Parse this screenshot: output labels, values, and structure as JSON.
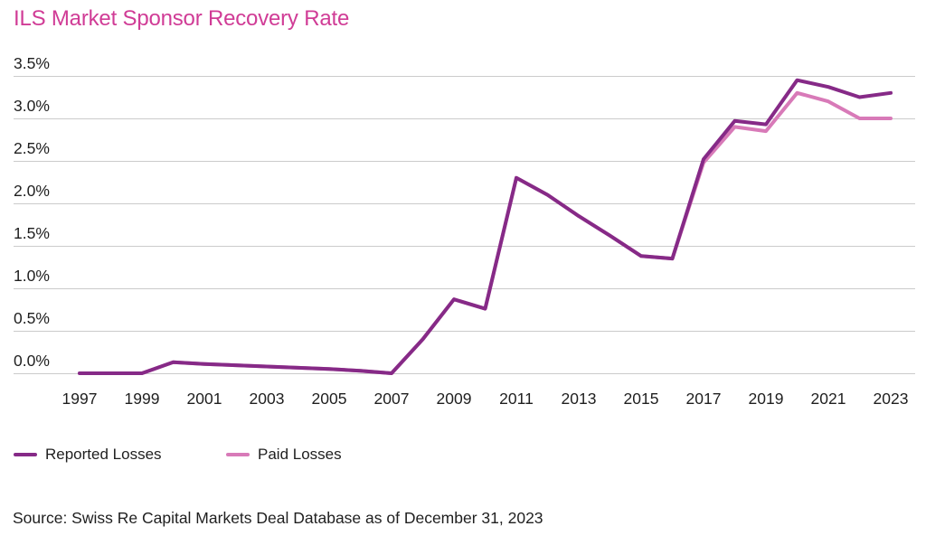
{
  "title": "ILS Market Sponsor Recovery Rate",
  "source_note": "Source: Swiss Re Capital Markets Deal Database as of December 31, 2023",
  "colors": {
    "title_accent": "#d03c96",
    "grid": "#cbcbcb",
    "text": "#1f1f1f",
    "reported_losses": "#862a87",
    "paid_losses": "#d87ab8"
  },
  "chart_data": {
    "type": "line",
    "title": "ILS Market Sponsor Recovery Rate",
    "xlabel": "",
    "ylabel": "",
    "x": [
      1997,
      1998,
      1999,
      2000,
      2001,
      2002,
      2003,
      2004,
      2005,
      2006,
      2007,
      2008,
      2009,
      2010,
      2011,
      2012,
      2013,
      2014,
      2015,
      2016,
      2017,
      2018,
      2019,
      2020,
      2021,
      2022,
      2023
    ],
    "x_tick_labels": [
      "1997",
      "1999",
      "2001",
      "2003",
      "2005",
      "2007",
      "2009",
      "2011",
      "2013",
      "2015",
      "2017",
      "2019",
      "2021",
      "2023"
    ],
    "y_ticks": [
      0.0,
      0.5,
      1.0,
      1.5,
      2.0,
      2.5,
      3.0,
      3.5
    ],
    "y_tick_suffix": "%",
    "ylim": [
      0,
      3.5
    ],
    "grid": true,
    "legend_position": "bottom-left",
    "series": [
      {
        "name": "Reported Losses",
        "color": "#862a87",
        "values": [
          0.0,
          0.0,
          0.0,
          0.13,
          0.11,
          0.095,
          0.08,
          0.065,
          0.05,
          0.03,
          0.0,
          0.4,
          0.87,
          0.76,
          2.3,
          2.1,
          1.85,
          1.62,
          1.38,
          1.35,
          2.52,
          2.97,
          2.93,
          3.45,
          3.37,
          3.25,
          3.3
        ]
      },
      {
        "name": "Paid Losses",
        "color": "#d87ab8",
        "values": [
          0.0,
          0.0,
          0.0,
          0.13,
          0.11,
          0.095,
          0.08,
          0.065,
          0.05,
          0.03,
          0.0,
          0.4,
          0.87,
          0.76,
          2.3,
          2.1,
          1.85,
          1.62,
          1.38,
          1.35,
          2.48,
          2.9,
          2.85,
          3.3,
          3.2,
          3.0,
          3.0
        ]
      }
    ]
  }
}
